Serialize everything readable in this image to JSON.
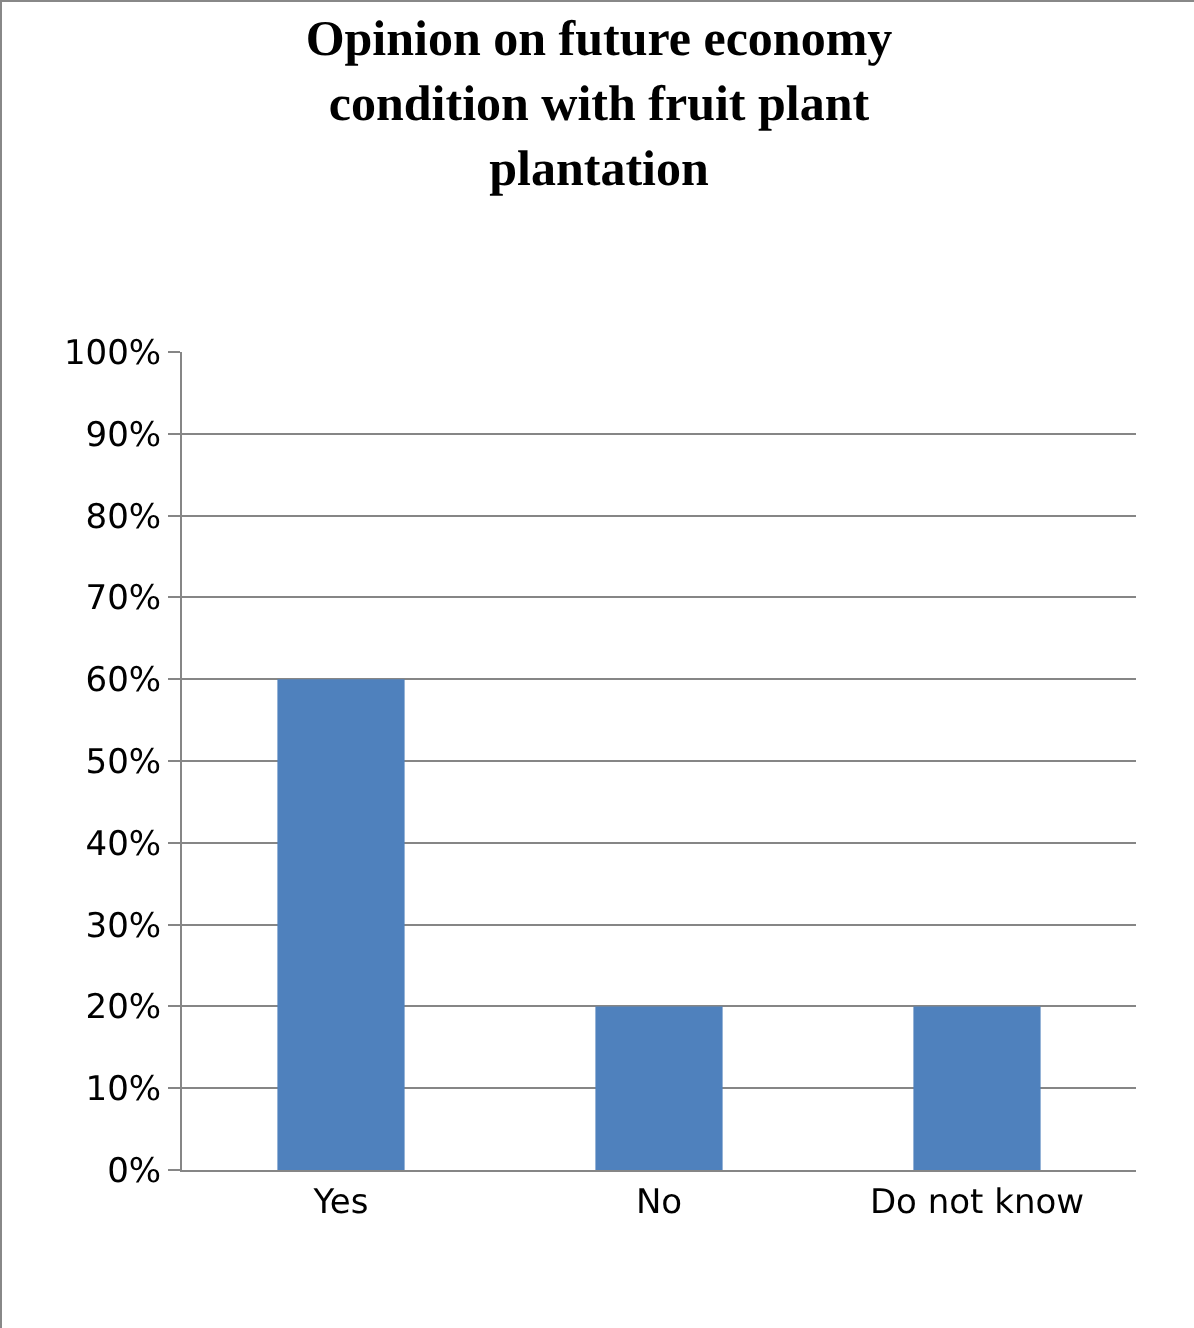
{
  "chart_data": {
    "type": "bar",
    "title": "Opinion on future economy condition with fruit plant plantation",
    "categories": [
      "Yes",
      "No",
      "Do not know"
    ],
    "values": [
      60,
      20,
      20
    ],
    "color": "#4f81bd",
    "ylim": [
      0,
      100
    ],
    "yticks": [
      {
        "value": 0,
        "label": "0%"
      },
      {
        "value": 10,
        "label": "10%"
      },
      {
        "value": 20,
        "label": "20%"
      },
      {
        "value": 30,
        "label": "30%"
      },
      {
        "value": 40,
        "label": "40%"
      },
      {
        "value": 50,
        "label": "50%"
      },
      {
        "value": 60,
        "label": "60%"
      },
      {
        "value": 70,
        "label": "70%"
      },
      {
        "value": 80,
        "label": "80%"
      },
      {
        "value": 90,
        "label": "90%"
      },
      {
        "value": 100,
        "label": "100%"
      }
    ],
    "grid": "y"
  }
}
